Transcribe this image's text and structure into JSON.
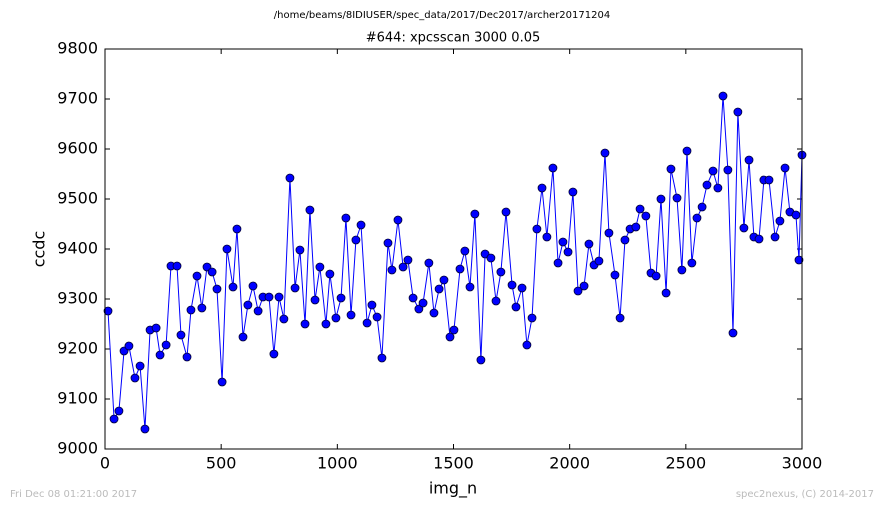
{
  "chart_data": {
    "type": "line",
    "suptitle": "/home/beams/8IDIUSER/spec_data/2017/Dec2017/archer20171204",
    "title": "#644: xpcsscan 3000 0.05",
    "xlabel": "img_n",
    "ylabel": "ccdc",
    "color": "#0000ff",
    "marker": true,
    "x": [
      13,
      39,
      60,
      82,
      103,
      129,
      151,
      172,
      194,
      220,
      237,
      263,
      284,
      310,
      327,
      353,
      370,
      396,
      417,
      439,
      461,
      482,
      504,
      525,
      551,
      568,
      594,
      615,
      637,
      659,
      680,
      706,
      727,
      749,
      770,
      796,
      818,
      839,
      861,
      882,
      904,
      925,
      951,
      968,
      994,
      1016,
      1037,
      1059,
      1080,
      1102,
      1128,
      1149,
      1171,
      1192,
      1218,
      1235,
      1261,
      1283,
      1304,
      1326,
      1351,
      1369,
      1394,
      1416,
      1438,
      1459,
      1485,
      1502,
      1528,
      1549,
      1571,
      1592,
      1618,
      1636,
      1661,
      1683,
      1704,
      1726,
      1752,
      1769,
      1795,
      1816,
      1838,
      1859,
      1881,
      1902,
      1928,
      1950,
      1971,
      1993,
      2014,
      2036,
      2062,
      2083,
      2105,
      2126,
      2152,
      2169,
      2195,
      2217,
      2238,
      2260,
      2285,
      2303,
      2328,
      2350,
      2372,
      2393,
      2415,
      2436,
      2462,
      2483,
      2505,
      2526,
      2548,
      2570,
      2591,
      2617,
      2638,
      2660,
      2681,
      2703,
      2724,
      2750,
      2772,
      2793,
      2815,
      2836,
      2858,
      2884,
      2905,
      2927,
      2948,
      2974,
      2987,
      3000
    ],
    "values": [
      9276,
      9060,
      9076,
      9196,
      9206,
      9142,
      9166,
      9040,
      9238,
      9242,
      9188,
      9208,
      9366,
      9366,
      9228,
      9184,
      9278,
      9346,
      9282,
      9364,
      9354,
      9320,
      9134,
      9400,
      9324,
      9440,
      9224,
      9288,
      9326,
      9276,
      9304,
      9304,
      9190,
      9304,
      9260,
      9542,
      9322,
      9398,
      9250,
      9478,
      9298,
      9364,
      9250,
      9350,
      9262,
      9302,
      9462,
      9268,
      9418,
      9448,
      9252,
      9288,
      9264,
      9182,
      9412,
      9358,
      9458,
      9364,
      9378,
      9302,
      9280,
      9292,
      9372,
      9272,
      9320,
      9338,
      9224,
      9238,
      9360,
      9396,
      9324,
      9470,
      9178,
      9390,
      9382,
      9296,
      9354,
      9474,
      9328,
      9284,
      9322,
      9208,
      9262,
      9440,
      9522,
      9424,
      9562,
      9372,
      9414,
      9394,
      9514,
      9316,
      9326,
      9410,
      9368,
      9376,
      9592,
      9432,
      9348,
      9262,
      9418,
      9440,
      9444,
      9480,
      9466,
      9352,
      9346,
      9500,
      9312,
      9560,
      9502,
      9358,
      9596,
      9372,
      9462,
      9484,
      9528,
      9556,
      9522,
      9706,
      9558,
      9232,
      9674,
      9442,
      9578,
      9424,
      9420,
      9538,
      9538,
      9424,
      9456,
      9562,
      9474,
      9468,
      9378,
      9588
    ],
    "xlim": [
      0,
      3000
    ],
    "xticks": [
      0,
      500,
      1000,
      1500,
      2000,
      2500,
      3000
    ],
    "ylim": [
      9000,
      9800
    ],
    "yticks": [
      9000,
      9100,
      9200,
      9300,
      9400,
      9500,
      9600,
      9700,
      9800
    ]
  },
  "footer": {
    "left": "Fri Dec 08 01:21:00 2017",
    "right": "spec2nexus, (C) 2014-2017"
  }
}
